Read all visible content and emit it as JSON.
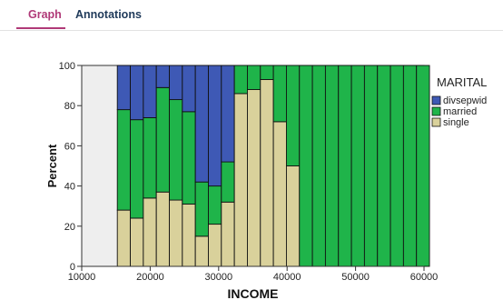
{
  "tabs": [
    {
      "label": "Graph",
      "active": true
    },
    {
      "label": "Annotations",
      "active": false
    }
  ],
  "chart_data": {
    "type": "bar",
    "stacked": true,
    "xlabel": "INCOME",
    "ylabel": "Percent",
    "xlim": [
      10000,
      60000
    ],
    "ylim": [
      0,
      100
    ],
    "xticks": [
      10000,
      20000,
      30000,
      40000,
      50000,
      60000
    ],
    "yticks": [
      0,
      20,
      40,
      60,
      80,
      100
    ],
    "bin_width": 1900,
    "bins": [
      15200,
      17100,
      19000,
      20900,
      22800,
      24700,
      26600,
      28500,
      30400,
      32300,
      34200,
      36100,
      38000,
      39900,
      41800,
      43700,
      45600,
      47500,
      49400,
      51300,
      53200,
      55100,
      57000,
      58900
    ],
    "legend": {
      "title": "MARITAL",
      "position": "right"
    },
    "colors": {
      "divsepwid": "#3e59b5",
      "married": "#1fb44a",
      "single": "#d9d19b",
      "plot_bg": "#eeeeee"
    },
    "series": [
      {
        "name": "single",
        "values": [
          28,
          24,
          34,
          37,
          33,
          31,
          15,
          21,
          32,
          86,
          88,
          93,
          72,
          50,
          0,
          0,
          0,
          0,
          0,
          0,
          0,
          0,
          0,
          0
        ]
      },
      {
        "name": "married",
        "values": [
          50,
          49,
          40,
          52,
          50,
          46,
          27,
          19,
          20,
          14,
          12,
          7,
          28,
          50,
          100,
          100,
          100,
          100,
          100,
          100,
          100,
          100,
          100,
          100
        ]
      },
      {
        "name": "divsepwid",
        "values": [
          22,
          27,
          26,
          11,
          17,
          23,
          58,
          60,
          48,
          0,
          0,
          0,
          0,
          0,
          0,
          0,
          0,
          0,
          0,
          0,
          0,
          0,
          0,
          0
        ]
      }
    ]
  }
}
